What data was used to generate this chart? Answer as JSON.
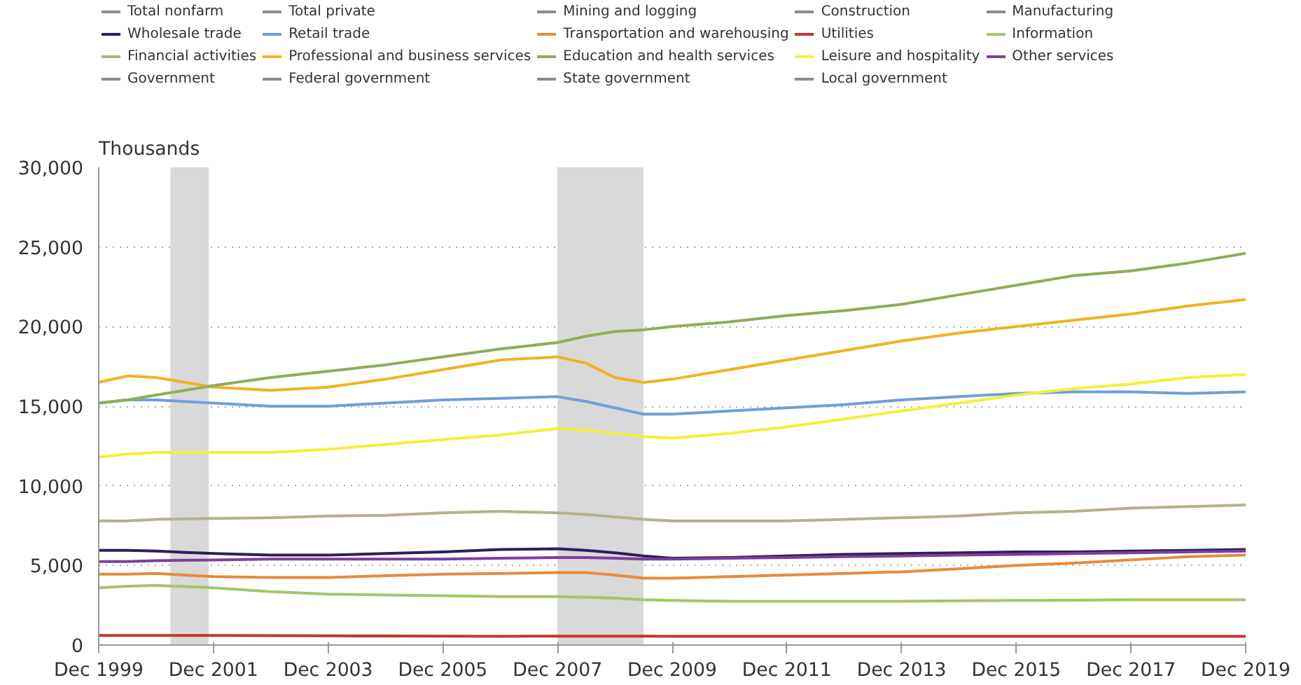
{
  "chart_data": {
    "type": "line",
    "ylabel": "Thousands",
    "x": [
      "1999-12",
      "2000-06",
      "2000-12",
      "2001-12",
      "2002-12",
      "2003-12",
      "2004-12",
      "2005-12",
      "2006-12",
      "2007-12",
      "2008-06",
      "2008-12",
      "2009-06",
      "2009-12",
      "2010-12",
      "2011-12",
      "2012-12",
      "2013-12",
      "2014-12",
      "2015-12",
      "2016-12",
      "2017-12",
      "2018-12",
      "2019-12"
    ],
    "series": [
      {
        "name": "Total nonfarm",
        "color": "#8c8c8c",
        "values": [
          null,
          null,
          null,
          null,
          null,
          null,
          null,
          null,
          null,
          null,
          null,
          null,
          null,
          null,
          null,
          null,
          null,
          null,
          null,
          null,
          null,
          null,
          null,
          null
        ]
      },
      {
        "name": "Total private",
        "color": "#8c8c8c",
        "values": [
          null,
          null,
          null,
          null,
          null,
          null,
          null,
          null,
          null,
          null,
          null,
          null,
          null,
          null,
          null,
          null,
          null,
          null,
          null,
          null,
          null,
          null,
          null,
          null
        ]
      },
      {
        "name": "Mining and logging",
        "color": "#8c8c8c",
        "values": [
          null,
          null,
          null,
          null,
          null,
          null,
          null,
          null,
          null,
          null,
          null,
          null,
          null,
          null,
          null,
          null,
          null,
          null,
          null,
          null,
          null,
          null,
          null,
          null
        ]
      },
      {
        "name": "Construction",
        "color": "#8c8c8c",
        "values": [
          null,
          null,
          null,
          null,
          null,
          null,
          null,
          null,
          null,
          null,
          null,
          null,
          null,
          null,
          null,
          null,
          null,
          null,
          null,
          null,
          null,
          null,
          null,
          null
        ]
      },
      {
        "name": "Manufacturing",
        "color": "#8c8c8c",
        "values": [
          null,
          null,
          null,
          null,
          null,
          null,
          null,
          null,
          null,
          null,
          null,
          null,
          null,
          null,
          null,
          null,
          null,
          null,
          null,
          null,
          null,
          null,
          null,
          null
        ]
      },
      {
        "name": "Wholesale trade",
        "color": "#2e1f5a",
        "values": [
          5950,
          5950,
          5900,
          5750,
          5650,
          5650,
          5750,
          5850,
          6000,
          6050,
          5950,
          5800,
          5600,
          5450,
          5500,
          5600,
          5700,
          5750,
          5800,
          5850,
          5850,
          5900,
          5950,
          6000
        ]
      },
      {
        "name": "Retail trade",
        "color": "#6f9fd8",
        "values": [
          15200,
          15400,
          15400,
          15200,
          15000,
          15000,
          15200,
          15400,
          15500,
          15600,
          15300,
          14900,
          14500,
          14500,
          14700,
          14900,
          15100,
          15400,
          15600,
          15800,
          15900,
          15900,
          15800,
          15900
        ]
      },
      {
        "name": "Transportation and warehousing",
        "color": "#e88a3c",
        "values": [
          4450,
          4450,
          4500,
          4300,
          4250,
          4250,
          4350,
          4450,
          4500,
          4550,
          4550,
          4400,
          4200,
          4200,
          4300,
          4400,
          4500,
          4600,
          4800,
          5000,
          5150,
          5350,
          5550,
          5650
        ]
      },
      {
        "name": "Utilities",
        "color": "#c0392b",
        "values": [
          600,
          600,
          600,
          600,
          590,
          580,
          570,
          560,
          555,
          560,
          560,
          565,
          560,
          555,
          555,
          555,
          555,
          550,
          555,
          555,
          555,
          555,
          550,
          550
        ]
      },
      {
        "name": "Information",
        "color": "#a6c46a",
        "values": [
          3600,
          3700,
          3750,
          3600,
          3350,
          3200,
          3150,
          3100,
          3050,
          3050,
          3000,
          2950,
          2850,
          2800,
          2750,
          2750,
          2750,
          2750,
          2780,
          2800,
          2820,
          2850,
          2850,
          2850
        ]
      },
      {
        "name": "Financial activities",
        "color": "#b8b08a",
        "values": [
          7800,
          7800,
          7900,
          7950,
          8000,
          8100,
          8150,
          8300,
          8400,
          8300,
          8200,
          8050,
          7900,
          7800,
          7800,
          7800,
          7900,
          8000,
          8100,
          8300,
          8400,
          8600,
          8700,
          8800
        ]
      },
      {
        "name": "Professional and business services",
        "color": "#f0b323",
        "values": [
          16500,
          16900,
          16800,
          16200,
          16000,
          16200,
          16700,
          17300,
          17900,
          18100,
          17700,
          16800,
          16500,
          16700,
          17300,
          17900,
          18500,
          19100,
          19600,
          20000,
          20400,
          20800,
          21300,
          21700
        ]
      },
      {
        "name": "Education and health services",
        "color": "#8fac5a",
        "values": [
          15200,
          15400,
          15700,
          16300,
          16800,
          17200,
          17600,
          18100,
          18600,
          19000,
          19400,
          19700,
          19800,
          20000,
          20300,
          20700,
          21000,
          21400,
          22000,
          22600,
          23200,
          23500,
          24000,
          24600
        ]
      },
      {
        "name": "Leisure and hospitality",
        "color": "#f5ef3a",
        "values": [
          11800,
          12000,
          12100,
          12100,
          12100,
          12300,
          12600,
          12900,
          13200,
          13600,
          13500,
          13300,
          13100,
          13000,
          13300,
          13700,
          14200,
          14700,
          15200,
          15700,
          16100,
          16400,
          16800,
          17000
        ]
      },
      {
        "name": "Other services",
        "color": "#7b3fa0",
        "values": [
          5250,
          5250,
          5300,
          5350,
          5400,
          5400,
          5400,
          5400,
          5450,
          5500,
          5500,
          5450,
          5400,
          5400,
          5450,
          5500,
          5550,
          5600,
          5650,
          5700,
          5750,
          5800,
          5850,
          5900
        ]
      },
      {
        "name": "Government",
        "color": "#8c8c8c",
        "values": [
          null,
          null,
          null,
          null,
          null,
          null,
          null,
          null,
          null,
          null,
          null,
          null,
          null,
          null,
          null,
          null,
          null,
          null,
          null,
          null,
          null,
          null,
          null,
          null
        ]
      },
      {
        "name": "Federal government",
        "color": "#8c8c8c",
        "values": [
          null,
          null,
          null,
          null,
          null,
          null,
          null,
          null,
          null,
          null,
          null,
          null,
          null,
          null,
          null,
          null,
          null,
          null,
          null,
          null,
          null,
          null,
          null,
          null
        ]
      },
      {
        "name": "State government",
        "color": "#8c8c8c",
        "values": [
          null,
          null,
          null,
          null,
          null,
          null,
          null,
          null,
          null,
          null,
          null,
          null,
          null,
          null,
          null,
          null,
          null,
          null,
          null,
          null,
          null,
          null,
          null,
          null
        ]
      },
      {
        "name": "Local government",
        "color": "#8c8c8c",
        "values": [
          null,
          null,
          null,
          null,
          null,
          null,
          null,
          null,
          null,
          null,
          null,
          null,
          null,
          null,
          null,
          null,
          null,
          null,
          null,
          null,
          null,
          null,
          null,
          null
        ]
      }
    ],
    "xlim": [
      "1999-12",
      "2019-12"
    ],
    "xticks": [
      {
        "value": "1999-12",
        "label": "Dec 1999"
      },
      {
        "value": "2001-12",
        "label": "Dec 2001"
      },
      {
        "value": "2003-12",
        "label": "Dec 2003"
      },
      {
        "value": "2005-12",
        "label": "Dec 2005"
      },
      {
        "value": "2007-12",
        "label": "Dec 2007"
      },
      {
        "value": "2009-12",
        "label": "Dec 2009"
      },
      {
        "value": "2011-12",
        "label": "Dec 2011"
      },
      {
        "value": "2013-12",
        "label": "Dec 2013"
      },
      {
        "value": "2015-12",
        "label": "Dec 2015"
      },
      {
        "value": "2017-12",
        "label": "Dec 2017"
      },
      {
        "value": "2019-12",
        "label": "Dec 2019"
      }
    ],
    "ylim": [
      0,
      30000
    ],
    "yticks": [
      {
        "value": 0,
        "label": "0"
      },
      {
        "value": 5000,
        "label": "5,000"
      },
      {
        "value": 10000,
        "label": "10,000"
      },
      {
        "value": 15000,
        "label": "15,000"
      },
      {
        "value": 20000,
        "label": "20,000"
      },
      {
        "value": 25000,
        "label": "25,000"
      },
      {
        "value": 30000,
        "label": "30,000"
      }
    ],
    "bands": [
      {
        "axis": "x",
        "from": "2001-03",
        "to": "2001-11",
        "color": "#d9d9d9"
      },
      {
        "axis": "x",
        "from": "2007-12",
        "to": "2009-06",
        "color": "#d9d9d9"
      }
    ],
    "grid": "y",
    "legend": "top",
    "line_style": "solid",
    "marker": "none"
  }
}
